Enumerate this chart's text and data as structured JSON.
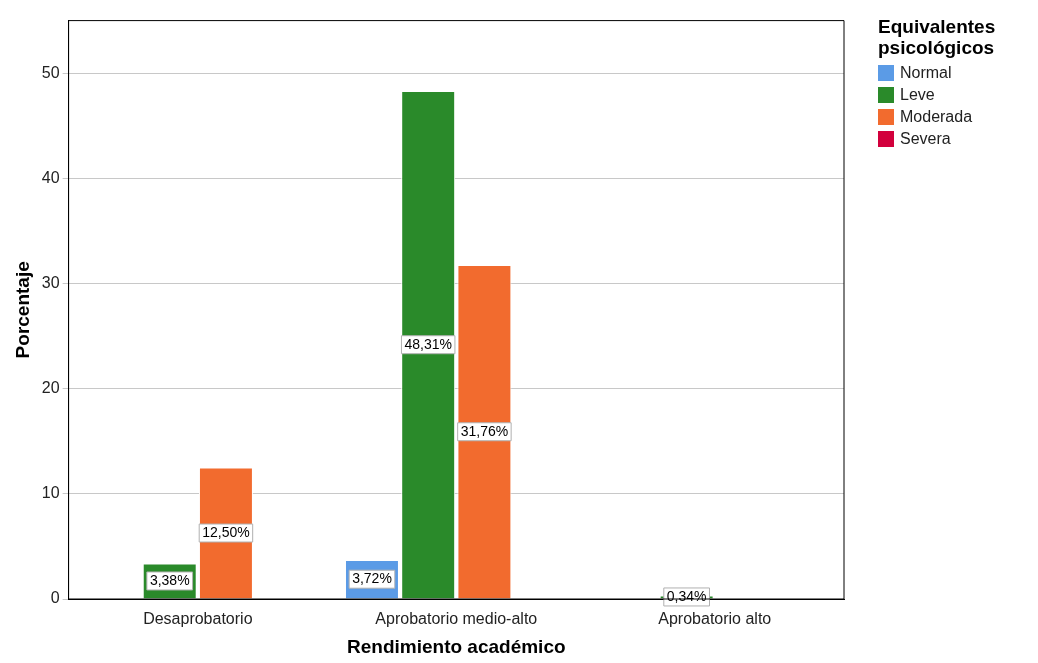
{
  "chart_data": {
    "type": "bar",
    "xlabel": "Rendimiento académico",
    "ylabel": "Porcentaje",
    "legend_title": "Equivalentes psicológicos",
    "legend": "top right",
    "categories": [
      "Desaprobatorio",
      "Aprobatorio medio-alto",
      "Aprobatorio alto"
    ],
    "series": [
      {
        "name": "Normal",
        "color": "#5b9be6",
        "values": [
          null,
          3.72,
          null
        ],
        "value_labels": [
          null,
          "3,72%",
          null
        ]
      },
      {
        "name": "Leve",
        "color": "#2a8a2a",
        "values": [
          3.38,
          48.31,
          0.34
        ],
        "value_labels": [
          "3,38%",
          "48,31%",
          "0,34%"
        ]
      },
      {
        "name": "Moderada",
        "color": "#f26b2e",
        "values": [
          12.5,
          31.76,
          null
        ],
        "value_labels": [
          "12,50%",
          "31,76%",
          null
        ]
      },
      {
        "name": "Severa",
        "color": "#d2003c",
        "values": [
          null,
          null,
          null
        ]
      }
    ],
    "ylim": [
      0,
      55
    ],
    "yticks": [
      0,
      10,
      20,
      30,
      40,
      50
    ],
    "grid": "y"
  }
}
